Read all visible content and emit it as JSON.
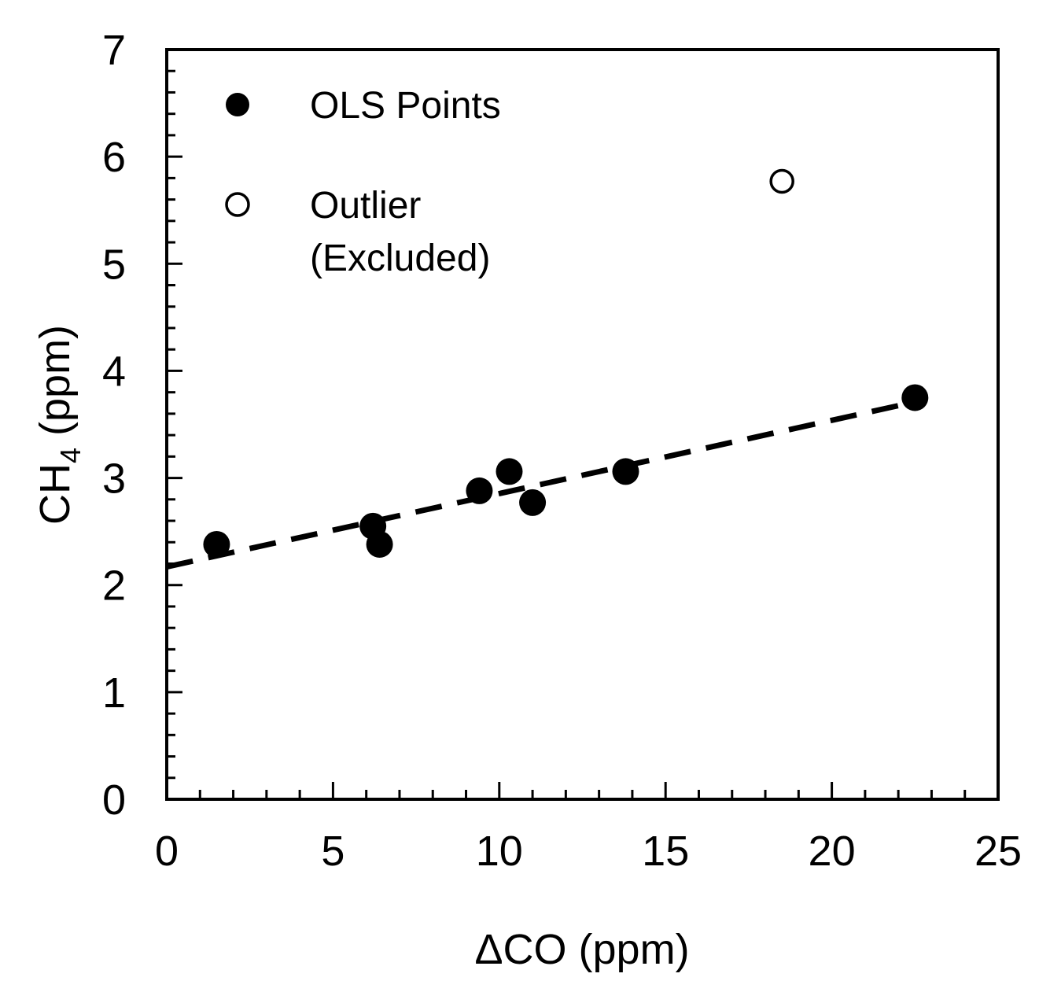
{
  "chart_data": {
    "type": "scatter",
    "x_axis": {
      "label_prefix": "ΔCO",
      "label_suffix": " (ppm)",
      "range": [
        0,
        25
      ],
      "major_ticks": [
        "0",
        "5",
        "10",
        "15",
        "20",
        "25"
      ],
      "minor_step": 1
    },
    "y_axis": {
      "label_main": "CH",
      "label_sub": "4",
      "label_suffix": " (ppm)",
      "range": [
        0,
        7
      ],
      "major_ticks": [
        "0",
        "1",
        "2",
        "3",
        "4",
        "5",
        "6",
        "7"
      ],
      "minor_step": 0.2
    },
    "series": [
      {
        "name": "OLS Points",
        "marker": "filled-circle",
        "color": "#000000",
        "points": [
          [
            1.5,
            2.38
          ],
          [
            6.2,
            2.55
          ],
          [
            6.4,
            2.38
          ],
          [
            9.4,
            2.88
          ],
          [
            10.3,
            3.06
          ],
          [
            11.0,
            2.77
          ],
          [
            13.8,
            3.06
          ],
          [
            22.5,
            3.75
          ]
        ]
      },
      {
        "name": "Outlier",
        "name_line2": "(Excluded)",
        "marker": "open-circle",
        "color": "#000000",
        "points": [
          [
            18.5,
            5.77
          ]
        ]
      }
    ],
    "fit_line": {
      "style": "dashed",
      "color": "#000000",
      "x": [
        0,
        22.8
      ],
      "y": [
        2.17,
        3.73
      ]
    },
    "legend_position": "top-left"
  }
}
